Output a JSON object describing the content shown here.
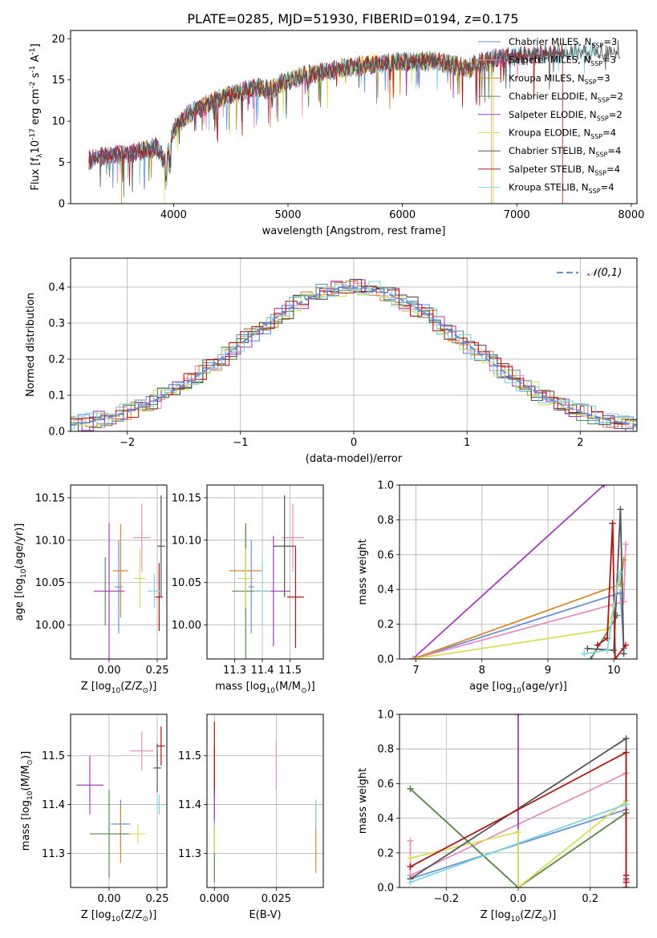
{
  "figure_title": "PLATE=0285, MJD=51930, FIBERID=0194, z=0.175",
  "colors": [
    "#6a8fd8",
    "#e88fbd",
    "#d4892e",
    "#5b8a55",
    "#a33db8",
    "#d7e05a",
    "#555555",
    "#b01818",
    "#7fd6dd"
  ],
  "legend_labels": [
    "Chabrier MILES, N$_{SSP}$=3",
    "Salpeter MILES, N$_{SSP}$=3",
    "Kroupa MILES, N$_{SSP}$=3",
    "Chabrier ELODIE, N$_{SSP}$=2",
    "Salpeter ELODIE, N$_{SSP}$=2",
    "Kroupa ELODIE, N$_{SSP}$=4",
    "Chabrier STELIB, N$_{SSP}$=4",
    "Salpeter STELIB, N$_{SSP}$=4",
    "Kroupa STELIB, N$_{SSP}$=4"
  ],
  "chart_data": [
    {
      "type": "line",
      "xlabel": "wavelength [Angstrom, rest frame]",
      "ylabel": "Flux [f$_\\lambda$10$^{-17}$ erg cm$^{-2}$ s$^{-1}$ A$^{-1}$]",
      "xlim": [
        3100,
        8050
      ],
      "ylim": [
        0,
        21
      ],
      "xticks": [
        4000,
        5000,
        6000,
        7000,
        8000
      ],
      "yticks": [
        0,
        5,
        10,
        15,
        20
      ],
      "grid": false,
      "legend": "right",
      "series_profile": {
        "x": [
          3260,
          3400,
          3550,
          3700,
          3850,
          3930,
          4000,
          4100,
          4200,
          4300,
          4400,
          4500,
          4700,
          4860,
          5000,
          5200,
          5500,
          5800,
          6000,
          6300,
          6563,
          6800,
          7100,
          7400,
          7600,
          7800,
          7900
        ],
        "y": [
          5.2,
          5.8,
          6.0,
          6.3,
          6.8,
          5.0,
          9.0,
          10.5,
          11.5,
          12.0,
          12.8,
          13.2,
          14.0,
          13.8,
          15.0,
          15.7,
          16.5,
          17.0,
          17.2,
          17.3,
          16.4,
          17.6,
          18.0,
          18.3,
          18.4,
          18.5,
          18.6
        ]
      },
      "dropout_series": [
        {
          "series": 2,
          "x_end": 3545
        },
        {
          "series": 5,
          "x_end": 3920
        },
        {
          "series": 2,
          "x_start": 6780
        },
        {
          "series": 5,
          "x_start": 6800
        },
        {
          "series": 7,
          "x_start": 7400
        }
      ]
    },
    {
      "type": "histogram",
      "xlabel": "(data-model)/error",
      "ylabel": "Normed distribution",
      "xlim": [
        -2.5,
        2.5
      ],
      "ylim": [
        0,
        0.48
      ],
      "xticks": [
        -2,
        -1,
        0,
        1,
        2
      ],
      "yticks": [
        0.0,
        0.1,
        0.2,
        0.3,
        0.4
      ],
      "grid": true,
      "reference_curve": {
        "name": "$\\mathcal{N}(0,1)$",
        "color": "#6a8fd8",
        "style": "dashed"
      },
      "bins": {
        "start": -2.5,
        "width": 0.1,
        "count": 50
      }
    },
    {
      "type": "scatter",
      "xlabel": "Z [log$_{10}$(Z/Z$_\\odot$)]",
      "ylabel": "age  [log$_{10}$(age/yr)]",
      "xlim": [
        -0.2,
        0.3
      ],
      "ylim": [
        9.96,
        10.165
      ],
      "xticks": [
        0.0,
        0.25
      ],
      "yticks": [
        10.0,
        10.05,
        10.1,
        10.15
      ],
      "grid": true,
      "points": [
        {
          "x": 0.05,
          "y": 10.045,
          "xerr": 0.02,
          "yerr": 0.055
        },
        {
          "x": 0.17,
          "y": 10.103,
          "xerr": 0.045,
          "yerr": 0.04
        },
        {
          "x": 0.06,
          "y": 10.064,
          "xerr": 0.04,
          "yerr": 0.055
        },
        {
          "x": -0.02,
          "y": 10.04,
          "xerr": 0.0,
          "yerr": 0.04
        },
        {
          "x": 0.0,
          "y": 10.04,
          "xerr": 0.08,
          "yerr": 0.08
        },
        {
          "x": 0.16,
          "y": 10.055,
          "xerr": 0.03,
          "yerr": 0.035
        },
        {
          "x": 0.27,
          "y": 10.093,
          "xerr": 0.02,
          "yerr": 0.06
        },
        {
          "x": 0.26,
          "y": 10.033,
          "xerr": 0.02,
          "yerr": 0.04
        },
        {
          "x": 0.235,
          "y": 10.04,
          "xerr": 0.035,
          "yerr": 0.02
        }
      ]
    },
    {
      "type": "scatter",
      "xlabel": "mass [log$_{10}$(M/M$_\\odot$)]",
      "ylabel": "",
      "xlim": [
        11.2,
        11.62
      ],
      "ylim": [
        9.96,
        10.165
      ],
      "xticks": [
        11.3,
        11.4,
        11.5
      ],
      "yticks": [
        10.0,
        10.05,
        10.1,
        10.15
      ],
      "grid": true,
      "points": [
        {
          "x": 11.36,
          "y": 10.045,
          "xerr": 0.01,
          "yerr": 0.055
        },
        {
          "x": 11.51,
          "y": 10.103,
          "xerr": 0.04,
          "yerr": 0.04
        },
        {
          "x": 11.34,
          "y": 10.064,
          "xerr": 0.06,
          "yerr": 0.055
        },
        {
          "x": 11.34,
          "y": 10.04,
          "xerr": 0.05,
          "yerr": 0.08
        },
        {
          "x": 11.44,
          "y": 10.04,
          "xerr": 0.06,
          "yerr": 0.065
        },
        {
          "x": 11.34,
          "y": 10.055,
          "xerr": 0.03,
          "yerr": 0.035
        },
        {
          "x": 11.48,
          "y": 10.093,
          "xerr": 0.04,
          "yerr": 0.06
        },
        {
          "x": 11.52,
          "y": 10.033,
          "xerr": 0.03,
          "yerr": 0.06
        },
        {
          "x": 11.4,
          "y": 10.04,
          "xerr": 0.03,
          "yerr": 0.04
        }
      ]
    },
    {
      "type": "line",
      "xlabel": "age  [log$_{10}$(age/yr)]",
      "ylabel": "mass weight",
      "xlim": [
        6.75,
        10.35
      ],
      "ylim": [
        0,
        1.0
      ],
      "xticks": [
        7,
        8,
        9,
        10
      ],
      "yticks": [
        0.0,
        0.2,
        0.4,
        0.6,
        0.8,
        1.0
      ],
      "grid": true,
      "series": [
        {
          "points": [
            [
              6.95,
              0.0
            ],
            [
              10.1,
              0.38
            ],
            [
              10.15,
              0.06
            ]
          ],
          "color": 0
        },
        {
          "points": [
            [
              6.95,
              0.0
            ],
            [
              10.15,
              0.33
            ],
            [
              10.18,
              0.66
            ]
          ],
          "color": 1
        },
        {
          "points": [
            [
              6.95,
              0.0
            ],
            [
              10.1,
              0.43
            ],
            [
              10.15,
              0.57
            ]
          ],
          "color": 2
        },
        {
          "points": [
            [
              9.65,
              0.0
            ],
            [
              10.05,
              0.25
            ]
          ],
          "color": 3
        },
        {
          "points": [
            [
              6.95,
              0.0
            ],
            [
              9.85,
              1.0
            ]
          ],
          "color": 4
        },
        {
          "points": [
            [
              6.95,
              0.0
            ],
            [
              9.9,
              0.17
            ],
            [
              10.0,
              0.3
            ],
            [
              10.1,
              0.5
            ]
          ],
          "color": 5
        },
        {
          "points": [
            [
              9.6,
              0.06
            ],
            [
              10.0,
              0.05
            ],
            [
              10.1,
              0.86
            ],
            [
              10.15,
              0.03
            ]
          ],
          "color": 6
        },
        {
          "points": [
            [
              9.75,
              0.08
            ],
            [
              9.9,
              0.12
            ],
            [
              9.98,
              0.78
            ],
            [
              10.02,
              0.0
            ],
            [
              10.18,
              0.08
            ]
          ],
          "color": 7
        },
        {
          "points": [
            [
              9.55,
              0.03
            ],
            [
              9.9,
              0.05
            ],
            [
              10.05,
              0.42
            ],
            [
              10.1,
              0.5
            ]
          ],
          "color": 8
        }
      ]
    },
    {
      "type": "scatter",
      "xlabel": "Z [log$_{10}$(Z/Z$_\\odot$)]",
      "ylabel": "mass [log$_{10}$(M/M$_\\odot$)]",
      "xlim": [
        -0.2,
        0.3
      ],
      "ylim": [
        11.23,
        11.585
      ],
      "xticks": [
        0.0,
        0.25
      ],
      "yticks": [
        11.3,
        11.4,
        11.5
      ],
      "grid": true,
      "points": [
        {
          "x": 0.06,
          "y": 11.36,
          "xerr": 0.05,
          "yerr": 0.05
        },
        {
          "x": 0.17,
          "y": 11.51,
          "xerr": 0.06,
          "yerr": 0.04
        },
        {
          "x": 0.06,
          "y": 11.34,
          "xerr": 0.05,
          "yerr": 0.06
        },
        {
          "x": 0.0,
          "y": 11.34,
          "xerr": 0.1,
          "yerr": 0.09
        },
        {
          "x": -0.1,
          "y": 11.44,
          "xerr": 0.07,
          "yerr": 0.06
        },
        {
          "x": 0.15,
          "y": 11.34,
          "xerr": 0.04,
          "yerr": 0.02
        },
        {
          "x": 0.25,
          "y": 11.475,
          "xerr": 0.02,
          "yerr": 0.05
        },
        {
          "x": 0.27,
          "y": 11.52,
          "xerr": 0.02,
          "yerr": 0.04
        },
        {
          "x": 0.26,
          "y": 11.4,
          "xerr": 0.03,
          "yerr": 0.02
        }
      ]
    },
    {
      "type": "scatter",
      "xlabel": "E(B-V)",
      "ylabel": "",
      "xlim": [
        -0.003,
        0.044
      ],
      "ylim": [
        11.23,
        11.585
      ],
      "xticks": [
        0.0,
        0.025
      ],
      "yticks": [
        11.3,
        11.4,
        11.5
      ],
      "grid": true,
      "points": [
        {
          "x": 0.0,
          "y": 11.4,
          "xerr": 0,
          "yerr": 0.05
        },
        {
          "x": 0.025,
          "y": 11.48,
          "xerr": 0,
          "yerr": 0.05
        },
        {
          "x": 0.041,
          "y": 11.33,
          "xerr": 0,
          "yerr": 0.07
        },
        {
          "x": 0.0,
          "y": 11.3,
          "xerr": 0,
          "yerr": 0.06
        },
        {
          "x": 0.0,
          "y": 11.42,
          "xerr": 0,
          "yerr": 0.05
        },
        {
          "x": 0.0,
          "y": 11.33,
          "xerr": 0,
          "yerr": 0.03
        },
        {
          "x": 0.0,
          "y": 11.47,
          "xerr": 0,
          "yerr": 0.05
        },
        {
          "x": 0.0,
          "y": 11.5,
          "xerr": 0,
          "yerr": 0.07
        },
        {
          "x": 0.041,
          "y": 11.38,
          "xerr": 0,
          "yerr": 0.03
        }
      ]
    },
    {
      "type": "line",
      "xlabel": "Z [log$_{10}$(Z/Z$_\\odot$)]",
      "ylabel": "mass weight",
      "xlim": [
        -0.33,
        0.33
      ],
      "ylim": [
        0,
        1.0
      ],
      "xticks": [
        -0.2,
        0.0,
        0.2
      ],
      "yticks": [
        0.0,
        0.2,
        0.4,
        0.6,
        0.8,
        1.0
      ],
      "grid": true,
      "series": [
        {
          "points": [
            [
              -0.3,
              0.05
            ],
            [
              0.3,
              0.45
            ],
            [
              0.3,
              0.04
            ]
          ],
          "color": 0
        },
        {
          "points": [
            [
              -0.3,
              0.27
            ],
            [
              -0.3,
              0.07
            ],
            [
              0.3,
              0.66
            ],
            [
              0.3,
              0.04
            ]
          ],
          "color": 1
        },
        {
          "points": [
            [
              -0.3,
              0.57
            ],
            [
              0.0,
              0.0
            ],
            [
              0.3,
              0.43
            ]
          ],
          "color": 2
        },
        {
          "points": [
            [
              -0.3,
              0.57
            ],
            [
              0.0,
              0.0
            ],
            [
              0.3,
              0.43
            ]
          ],
          "color": 3
        },
        {
          "points": [
            [
              0.0,
              1.0
            ],
            [
              0.0,
              0.0
            ]
          ],
          "color": 4
        },
        {
          "points": [
            [
              -0.3,
              0.17
            ],
            [
              0.0,
              0.32
            ],
            [
              0.0,
              0.0
            ],
            [
              0.3,
              0.5
            ]
          ],
          "color": 5
        },
        {
          "points": [
            [
              -0.3,
              0.05
            ],
            [
              0.3,
              0.86
            ],
            [
              0.3,
              0.05
            ]
          ],
          "color": 6
        },
        {
          "points": [
            [
              -0.3,
              0.12
            ],
            [
              0.3,
              0.78
            ],
            [
              0.3,
              0.07
            ],
            [
              0.3,
              0.03
            ],
            [
              0.3,
              0.0
            ]
          ],
          "color": 7
        },
        {
          "points": [
            [
              -0.3,
              0.03
            ],
            [
              0.3,
              0.48
            ]
          ],
          "color": 8
        }
      ]
    }
  ]
}
